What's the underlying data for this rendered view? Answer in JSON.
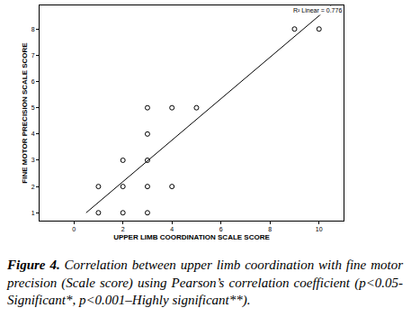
{
  "chart_data": {
    "type": "scatter",
    "x_label": "UPPER LIMB COORDINATION SCALE SCORE",
    "y_label": "FINE MOTOR PRECISION SCALE SCORE",
    "annotation": "R² Linear = 0.776",
    "caption_label": "Figure 4.",
    "caption": "Correlation between upper limb coordination with fine motor precision (Scale score) using Pearson’s correlation coefficient (p<0.05-Significant*, p<0.001–Highly significant**).",
    "xlim": [
      -1.4,
      11
    ],
    "ylim": [
      0.7,
      8.9
    ],
    "xticks": [
      0,
      2,
      4,
      6,
      8,
      10
    ],
    "yticks": [
      1,
      2,
      3,
      4,
      5,
      6,
      7,
      8
    ],
    "grid": false,
    "series": [
      {
        "type": "scatter",
        "marker": "open circle",
        "color": "#000000",
        "x": [
          1,
          1,
          2,
          2,
          2,
          3,
          3,
          3,
          3,
          3,
          4,
          4,
          5,
          9,
          10
        ],
        "values": [
          2,
          1,
          3,
          2,
          1,
          5,
          4,
          3,
          2,
          1,
          5,
          2,
          5,
          8,
          8
        ]
      },
      {
        "type": "line",
        "line_style": "solid",
        "color": "#000000",
        "x": [
          0.5,
          10.5
        ],
        "values": [
          1.0,
          8.9
        ]
      }
    ]
  }
}
